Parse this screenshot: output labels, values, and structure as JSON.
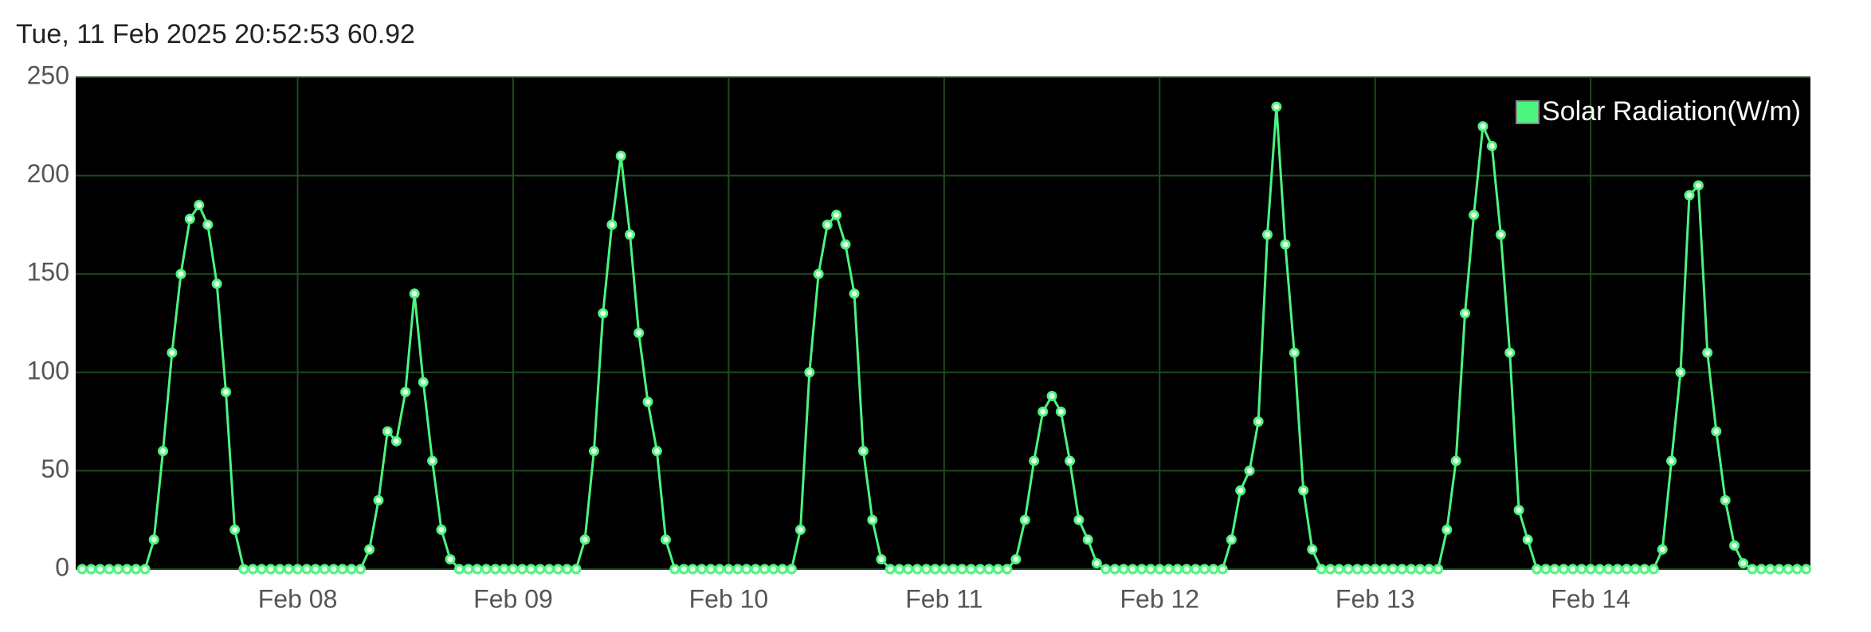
{
  "header": {
    "text": "Tue, 11 Feb 2025 20:52:53 60.92"
  },
  "chart_data": {
    "type": "line",
    "x": [
      7,
      7.042,
      7.083,
      7.125,
      7.167,
      7.208,
      7.25,
      7.292,
      7.333,
      7.375,
      7.417,
      7.458,
      7.5,
      7.542,
      7.583,
      7.625,
      7.667,
      7.708,
      7.75,
      7.792,
      7.833,
      7.875,
      7.917,
      7.958,
      8,
      8.042,
      8.083,
      8.125,
      8.167,
      8.208,
      8.25,
      8.292,
      8.333,
      8.375,
      8.417,
      8.458,
      8.5,
      8.542,
      8.583,
      8.625,
      8.667,
      8.708,
      8.75,
      8.792,
      8.833,
      8.875,
      8.917,
      8.958,
      9,
      9.042,
      9.083,
      9.125,
      9.167,
      9.208,
      9.25,
      9.292,
      9.333,
      9.375,
      9.417,
      9.458,
      9.5,
      9.542,
      9.583,
      9.625,
      9.667,
      9.708,
      9.75,
      9.792,
      9.833,
      9.875,
      9.917,
      9.958,
      10,
      10.042,
      10.083,
      10.125,
      10.167,
      10.208,
      10.25,
      10.292,
      10.333,
      10.375,
      10.417,
      10.458,
      10.5,
      10.542,
      10.583,
      10.625,
      10.667,
      10.708,
      10.75,
      10.792,
      10.833,
      10.875,
      10.917,
      10.958,
      11,
      11.042,
      11.083,
      11.125,
      11.167,
      11.208,
      11.25,
      11.292,
      11.333,
      11.375,
      11.417,
      11.458,
      11.5,
      11.542,
      11.583,
      11.625,
      11.667,
      11.708,
      11.75,
      11.792,
      11.833,
      11.875,
      11.917,
      11.958,
      12,
      12.042,
      12.083,
      12.125,
      12.167,
      12.208,
      12.25,
      12.292,
      12.333,
      12.375,
      12.417,
      12.458,
      12.5,
      12.542,
      12.583,
      12.625,
      12.667,
      12.708,
      12.75,
      12.792,
      12.833,
      12.875,
      12.917,
      12.958,
      13,
      13.042,
      13.083,
      13.125,
      13.167,
      13.208,
      13.25,
      13.292,
      13.333,
      13.375,
      13.417,
      13.458,
      13.5,
      13.542,
      13.583,
      13.625,
      13.667,
      13.708,
      13.75,
      13.792,
      13.833,
      13.875,
      13.917,
      13.958,
      14,
      14.042,
      14.083,
      14.125,
      14.167,
      14.208,
      14.25,
      14.292,
      14.333,
      14.375,
      14.417,
      14.458,
      14.5,
      14.542,
      14.583,
      14.625,
      14.667,
      14.708,
      14.75,
      14.792,
      14.833,
      14.875,
      14.917,
      14.958,
      15
    ],
    "series": [
      {
        "name": "Solar Radiation(W/m)",
        "color": "#4cf57f",
        "values": [
          0,
          0,
          0,
          0,
          0,
          0,
          0,
          0,
          15,
          60,
          110,
          150,
          178,
          185,
          175,
          145,
          90,
          20,
          0,
          0,
          0,
          0,
          0,
          0,
          0,
          0,
          0,
          0,
          0,
          0,
          0,
          0,
          10,
          35,
          70,
          65,
          90,
          140,
          95,
          55,
          20,
          5,
          0,
          0,
          0,
          0,
          0,
          0,
          0,
          0,
          0,
          0,
          0,
          0,
          0,
          0,
          15,
          60,
          130,
          175,
          210,
          170,
          120,
          85,
          60,
          15,
          0,
          0,
          0,
          0,
          0,
          0,
          0,
          0,
          0,
          0,
          0,
          0,
          0,
          0,
          20,
          100,
          150,
          175,
          180,
          165,
          140,
          60,
          25,
          5,
          0,
          0,
          0,
          0,
          0,
          0,
          0,
          0,
          0,
          0,
          0,
          0,
          0,
          0,
          5,
          25,
          55,
          80,
          88,
          80,
          55,
          25,
          15,
          3,
          0,
          0,
          0,
          0,
          0,
          0,
          0,
          0,
          0,
          0,
          0,
          0,
          0,
          0,
          15,
          40,
          50,
          75,
          170,
          235,
          165,
          110,
          40,
          10,
          0,
          0,
          0,
          0,
          0,
          0,
          0,
          0,
          0,
          0,
          0,
          0,
          0,
          0,
          20,
          55,
          130,
          180,
          225,
          215,
          170,
          110,
          30,
          15,
          0,
          0,
          0,
          0,
          0,
          0,
          0,
          0,
          0,
          0,
          0,
          0,
          0,
          0,
          10,
          55,
          100,
          190,
          195,
          110,
          70,
          35,
          12,
          3,
          0,
          0,
          0,
          0,
          0,
          0,
          0
        ]
      }
    ],
    "xlim": [
      6.97,
      15.02
    ],
    "xticks": [
      {
        "value": 8,
        "label": "Feb 08"
      },
      {
        "value": 9,
        "label": "Feb 09"
      },
      {
        "value": 10,
        "label": "Feb 10"
      },
      {
        "value": 11,
        "label": "Feb 11"
      },
      {
        "value": 12,
        "label": "Feb 12"
      },
      {
        "value": 13,
        "label": "Feb 13"
      },
      {
        "value": 14,
        "label": "Feb 14"
      }
    ],
    "ylim": [
      0,
      250
    ],
    "yticks": [
      0,
      50,
      100,
      150,
      200,
      250
    ],
    "grid": true,
    "legend": "upper right"
  }
}
